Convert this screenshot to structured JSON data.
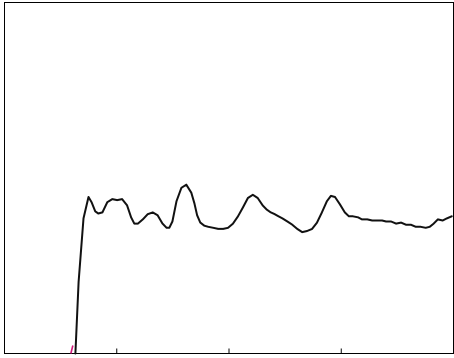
{
  "chart_data": {
    "type": "line",
    "title": "",
    "xlabel": "",
    "ylabel": "",
    "xlim": [
      0,
      100
    ],
    "ylim": [
      0,
      100
    ],
    "grid": false,
    "legend": "none",
    "x_ticks": [
      25,
      50,
      75
    ],
    "marker": {
      "x": 15,
      "color": "#d0187a"
    },
    "series": [
      {
        "color": "#111111",
        "x": [
          15.8,
          16.5,
          17.6,
          18.7,
          19.4,
          20.2,
          20.9,
          21.8,
          22.9,
          24.0,
          25.1,
          26.2,
          27.3,
          28.2,
          28.9,
          29.7,
          30.8,
          31.9,
          33.0,
          34.1,
          35.2,
          36.1,
          36.7,
          37.4,
          38.3,
          39.4,
          40.5,
          41.6,
          42.3,
          42.9,
          43.6,
          44.5,
          45.4,
          46.5,
          47.6,
          48.7,
          49.8,
          50.9,
          52.0,
          53.1,
          54.2,
          55.3,
          56.4,
          57.5,
          58.4,
          59.3,
          60.2,
          61.0,
          61.9,
          63.0,
          64.1,
          65.2,
          66.3,
          67.4,
          68.5,
          69.6,
          70.7,
          71.8,
          72.7,
          73.6,
          74.7,
          75.8,
          76.7,
          77.6,
          78.7,
          79.6,
          80.8,
          81.9,
          83.0,
          84.1,
          85.0,
          86.1,
          87.2,
          88.3,
          89.4,
          90.5,
          91.6,
          92.7,
          93.8,
          94.7,
          95.6,
          96.5,
          97.6,
          98.5,
          99.6
        ],
        "y": [
          0,
          20.4,
          38.5,
          44.6,
          43.1,
          40.5,
          39.9,
          40.2,
          43.1,
          44.0,
          43.7,
          44.0,
          42.2,
          38.8,
          37.0,
          37.0,
          38.2,
          39.7,
          40.2,
          39.4,
          37.0,
          35.8,
          35.8,
          37.6,
          43.4,
          47.2,
          48.1,
          45.8,
          42.8,
          39.4,
          37.3,
          36.4,
          36.1,
          35.8,
          35.5,
          35.5,
          35.8,
          37.0,
          39.1,
          41.6,
          44.3,
          45.2,
          44.3,
          42.2,
          41.0,
          40.2,
          39.7,
          39.1,
          38.5,
          37.6,
          36.7,
          35.5,
          34.6,
          34.9,
          35.5,
          37.3,
          40.2,
          43.4,
          44.9,
          44.6,
          42.5,
          40.2,
          39.1,
          39.1,
          38.8,
          38.2,
          38.2,
          37.9,
          37.9,
          37.9,
          37.6,
          37.6,
          37.0,
          37.3,
          36.7,
          36.7,
          36.1,
          36.1,
          35.8,
          36.1,
          37.0,
          38.2,
          37.9,
          38.5,
          39.1
        ]
      }
    ]
  }
}
